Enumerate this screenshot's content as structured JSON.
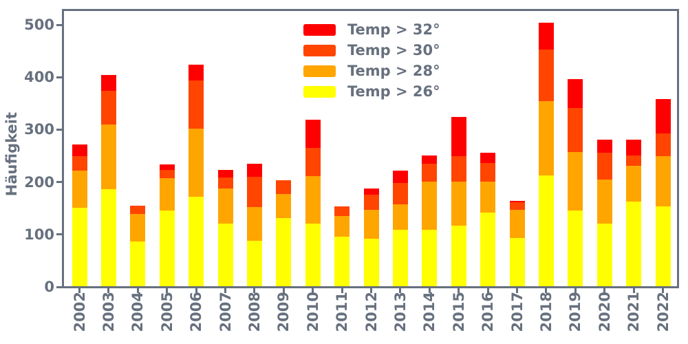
{
  "chart_data": {
    "type": "bar",
    "stacked": true,
    "title": "",
    "xlabel": "",
    "ylabel": "Häufigkeit",
    "ylim": [
      0,
      527
    ],
    "yticks": [
      0,
      100,
      200,
      300,
      400,
      500
    ],
    "grid": false,
    "legend_position": "upper center inside",
    "categories": [
      "2002",
      "2003",
      "2004",
      "2005",
      "2006",
      "2007",
      "2008",
      "2009",
      "2010",
      "2011",
      "2012",
      "2013",
      "2014",
      "2015",
      "2016",
      "2017",
      "2018",
      "2019",
      "2020",
      "2021",
      "2022"
    ],
    "series": [
      {
        "name": "Temp > 32°",
        "color": "#ff0000",
        "values": [
          22,
          30,
          0,
          10,
          31,
          14,
          24,
          0,
          54,
          0,
          12,
          24,
          17,
          75,
          20,
          3,
          51,
          55,
          26,
          29,
          65
        ]
      },
      {
        "name": "Temp > 30°",
        "color": "#ff4500",
        "values": [
          28,
          65,
          16,
          16,
          92,
          21,
          58,
          26,
          54,
          18,
          28,
          41,
          33,
          48,
          35,
          14,
          98,
          84,
          50,
          20,
          44
        ]
      },
      {
        "name": "Temp > 28°",
        "color": "#ffa500",
        "values": [
          70,
          123,
          53,
          62,
          129,
          67,
          64,
          46,
          90,
          39,
          56,
          48,
          92,
          85,
          59,
          54,
          142,
          111,
          84,
          68,
          96
        ]
      },
      {
        "name": "Temp > 26°",
        "color": "#ffff00",
        "values": [
          150,
          185,
          85,
          144,
          171,
          120,
          87,
          130,
          120,
          95,
          90,
          108,
          108,
          115,
          141,
          92,
          211,
          145,
          120,
          162,
          152
        ]
      }
    ],
    "totals": [
      270,
      403,
      154,
      232,
      423,
      222,
      233,
      202,
      318,
      152,
      186,
      221,
      250,
      323,
      255,
      163,
      502,
      395,
      280,
      279,
      357
    ]
  },
  "colors": {
    "axis": "#67707e",
    "background": "#ffffff"
  }
}
